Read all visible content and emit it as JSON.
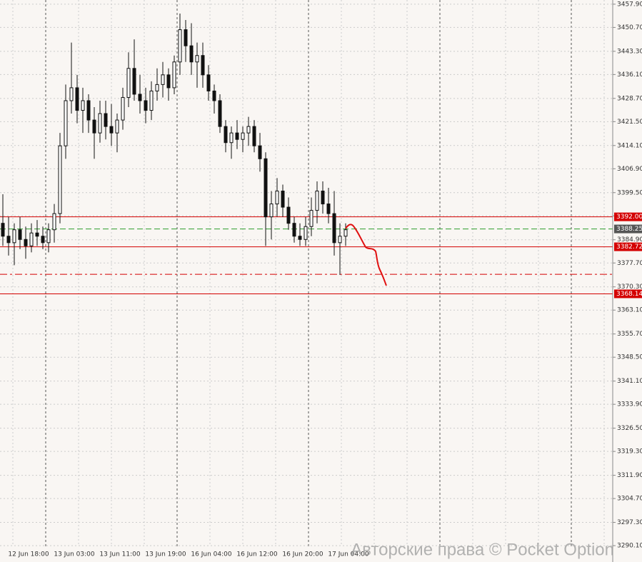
{
  "chart_data": {
    "type": "candlestick",
    "ylim": [
      3289.9,
      3459.2
    ],
    "yticks": [
      {
        "value": 3457.9,
        "label": "3457.90"
      },
      {
        "value": 3450.7,
        "label": "3450.70"
      },
      {
        "value": 3443.3,
        "label": "3443.30"
      },
      {
        "value": 3436.1,
        "label": "3436.10"
      },
      {
        "value": 3428.7,
        "label": "3428.70"
      },
      {
        "value": 3421.5,
        "label": "3421.50"
      },
      {
        "value": 3414.1,
        "label": "3414.10"
      },
      {
        "value": 3406.9,
        "label": "3406.90"
      },
      {
        "value": 3399.5,
        "label": "3399.50"
      },
      {
        "value": 3392.3,
        "label": "3392.30"
      },
      {
        "value": 3384.9,
        "label": "3384.90"
      },
      {
        "value": 3377.7,
        "label": "3377.70"
      },
      {
        "value": 3370.3,
        "label": "3370.30"
      },
      {
        "value": 3363.1,
        "label": "3363.10"
      },
      {
        "value": 3355.7,
        "label": "3355.70"
      },
      {
        "value": 3348.5,
        "label": "3348.50"
      },
      {
        "value": 3341.1,
        "label": "3341.10"
      },
      {
        "value": 3333.9,
        "label": "3333.90"
      },
      {
        "value": 3326.5,
        "label": "3326.50"
      },
      {
        "value": 3319.3,
        "label": "3319.30"
      },
      {
        "value": 3311.9,
        "label": "3311.90"
      },
      {
        "value": 3304.7,
        "label": "3304.70"
      },
      {
        "value": 3297.3,
        "label": "3297.30"
      },
      {
        "value": 3290.1,
        "label": "3290.10"
      }
    ],
    "xtick_labels": [
      "12 Jun 18:00",
      "13 Jun 03:00",
      "13 Jun 11:00",
      "13 Jun 19:00",
      "16 Jun 04:00",
      "16 Jun 12:00",
      "16 Jun 20:00",
      "17 Jun 04:00"
    ],
    "grid": true,
    "candles": [
      [
        3390,
        3399,
        3383,
        3386
      ],
      [
        3386,
        3392,
        3380,
        3384
      ],
      [
        3384,
        3390,
        3377,
        3388
      ],
      [
        3388,
        3392,
        3382,
        3385
      ],
      [
        3385,
        3389,
        3379,
        3383
      ],
      [
        3383,
        3390,
        3381,
        3387
      ],
      [
        3387,
        3391,
        3383,
        3386
      ],
      [
        3386,
        3389,
        3382,
        3384
      ],
      [
        3384,
        3390,
        3381,
        3388
      ],
      [
        3388,
        3396,
        3384,
        3393
      ],
      [
        3393,
        3418,
        3390,
        3414
      ],
      [
        3414,
        3433,
        3410,
        3428
      ],
      [
        3428,
        3446,
        3424,
        3432
      ],
      [
        3432,
        3436,
        3421,
        3425
      ],
      [
        3425,
        3432,
        3418,
        3428
      ],
      [
        3428,
        3430,
        3418,
        3422
      ],
      [
        3422,
        3426,
        3410,
        3418
      ],
      [
        3418,
        3428,
        3415,
        3424
      ],
      [
        3424,
        3428,
        3416,
        3420
      ],
      [
        3420,
        3427,
        3414,
        3418
      ],
      [
        3418,
        3424,
        3412,
        3422
      ],
      [
        3422,
        3432,
        3419,
        3429
      ],
      [
        3429,
        3443,
        3426,
        3438
      ],
      [
        3438,
        3447,
        3428,
        3430
      ],
      [
        3430,
        3436,
        3424,
        3428
      ],
      [
        3428,
        3432,
        3421,
        3425
      ],
      [
        3425,
        3434,
        3422,
        3431
      ],
      [
        3431,
        3438,
        3428,
        3433
      ],
      [
        3433,
        3440,
        3429,
        3436
      ],
      [
        3436,
        3438,
        3428,
        3432
      ],
      [
        3432,
        3442,
        3430,
        3440
      ],
      [
        3440,
        3455,
        3436,
        3450
      ],
      [
        3450,
        3453,
        3440,
        3445
      ],
      [
        3445,
        3452,
        3436,
        3440
      ],
      [
        3440,
        3446,
        3432,
        3442
      ],
      [
        3442,
        3446,
        3432,
        3436
      ],
      [
        3436,
        3439,
        3428,
        3431
      ],
      [
        3431,
        3433,
        3424,
        3428
      ],
      [
        3428,
        3430,
        3418,
        3420
      ],
      [
        3420,
        3422,
        3412,
        3415
      ],
      [
        3415,
        3420,
        3410,
        3418
      ],
      [
        3418,
        3422,
        3413,
        3416
      ],
      [
        3416,
        3420,
        3412,
        3418
      ],
      [
        3418,
        3423,
        3414,
        3420
      ],
      [
        3420,
        3422,
        3412,
        3414
      ],
      [
        3414,
        3418,
        3406,
        3410
      ],
      [
        3410,
        3412,
        3383,
        3392
      ],
      [
        3392,
        3400,
        3385,
        3396
      ],
      [
        3396,
        3404,
        3392,
        3400
      ],
      [
        3400,
        3402,
        3392,
        3395
      ],
      [
        3395,
        3398,
        3388,
        3390
      ],
      [
        3390,
        3392,
        3384,
        3386
      ],
      [
        3386,
        3390,
        3383,
        3385
      ],
      [
        3385,
        3392,
        3383,
        3389
      ],
      [
        3389,
        3398,
        3386,
        3394
      ],
      [
        3394,
        3403,
        3390,
        3400
      ],
      [
        3400,
        3403,
        3393,
        3396
      ],
      [
        3396,
        3401,
        3390,
        3393
      ],
      [
        3393,
        3400,
        3380,
        3384
      ],
      [
        3384,
        3390,
        3374,
        3386
      ],
      [
        3386,
        3390,
        3383,
        3388
      ]
    ],
    "levels": [
      {
        "value": 3392.0,
        "label": "3392.00",
        "color": "#d40000",
        "style": "solid"
      },
      {
        "value": 3388.25,
        "label": "3388.25",
        "color": "#2e9e2e",
        "style": "dashed"
      },
      {
        "value": 3382.72,
        "label": "3382.72",
        "color": "#d40000",
        "style": "solid"
      },
      {
        "value": 3374.2,
        "color": "#d40000",
        "style": "dashdot"
      },
      {
        "value": 3368.14,
        "label": "3368.14",
        "color": "#d40000",
        "style": "solid"
      }
    ],
    "watermark": "Авторские права © Pocket Option"
  }
}
